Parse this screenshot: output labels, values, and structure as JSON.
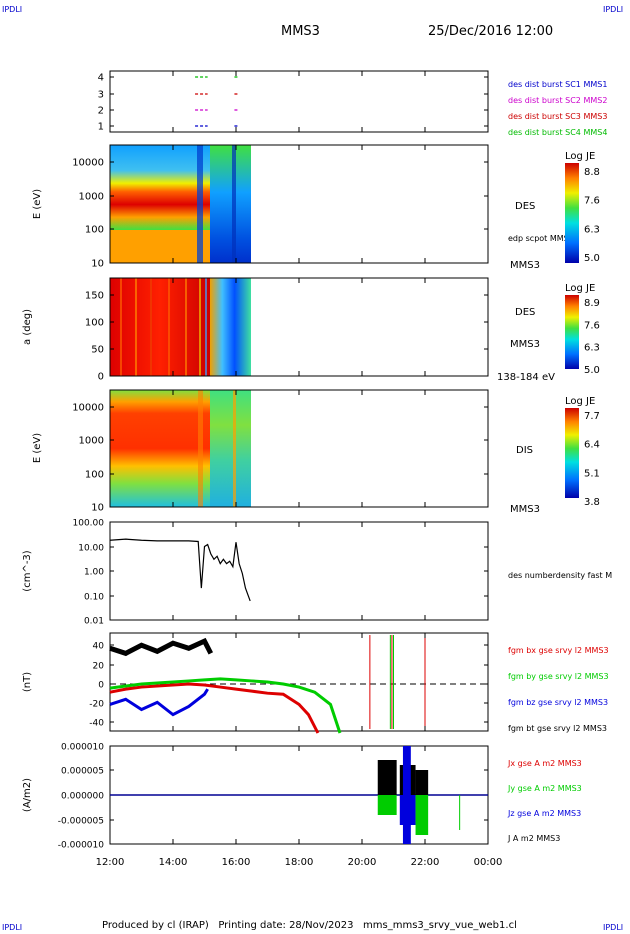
{
  "header": {
    "corner_left": "IPDLI",
    "corner_right": "IPDLI",
    "spacecraft": "MMS3",
    "datetime": "25/Dec/2016 12:00"
  },
  "footer": {
    "text": "Produced by cl (IRAP)   Printing date: 28/Nov/2023   mms_mms3_srvy_vue_web1.cl",
    "corner_left": "IPDLI",
    "corner_right": "IPDLI"
  },
  "chart_data": [
    {
      "type": "scatter",
      "panel": "availability",
      "x_range_hours": [
        12,
        24
      ],
      "y_ticks": [
        "4",
        "3",
        "2",
        "1"
      ],
      "legend": [
        {
          "label": "des dist burst SC1 MMS1",
          "color": "#0000cc"
        },
        {
          "label": "des dist burst SC2 MMS2",
          "color": "#cc00cc"
        },
        {
          "label": "des dist burst SC3 MMS3",
          "color": "#cc0000"
        },
        {
          "label": "des dist burst SC4 MMS4",
          "color": "#00bb00"
        }
      ],
      "intervals_hours": [
        [
          14.7,
          15.1
        ],
        [
          15.95,
          16.05
        ]
      ]
    },
    {
      "type": "heatmap",
      "panel": "des-energy",
      "ylabel": "E (eV)",
      "yscale": "log",
      "ylim": [
        10,
        30000
      ],
      "y_ticks": [
        "10000",
        "1000",
        "100",
        "10"
      ],
      "side_labels": [
        "DES",
        "edp scpot MMS3",
        "MMS3"
      ],
      "colorbar": {
        "title": "Log JE",
        "ticks": [
          "8.8",
          "7.6",
          "6.3",
          "5.0"
        ]
      },
      "data_extent_hours": [
        12,
        16.5
      ]
    },
    {
      "type": "heatmap",
      "panel": "des-pitch-angle",
      "ylabel": "a (deg)",
      "ylim": [
        0,
        180
      ],
      "y_ticks": [
        "150",
        "100",
        "50",
        "0"
      ],
      "side_labels": [
        "DES",
        "MMS3",
        "138-184 eV"
      ],
      "colorbar": {
        "title": "Log JE",
        "ticks": [
          "8.9",
          "7.6",
          "6.3",
          "5.0"
        ]
      },
      "data_extent_hours": [
        12,
        16.5
      ]
    },
    {
      "type": "heatmap",
      "panel": "dis-energy",
      "ylabel": "E (eV)",
      "yscale": "log",
      "ylim": [
        10,
        30000
      ],
      "y_ticks": [
        "10000",
        "1000",
        "100",
        "10"
      ],
      "side_labels": [
        "DIS",
        "MMS3"
      ],
      "colorbar": {
        "title": "Log JE",
        "ticks": [
          "7.7",
          "6.4",
          "5.1",
          "3.8"
        ]
      },
      "data_extent_hours": [
        12,
        16.5
      ]
    },
    {
      "type": "line",
      "panel": "density",
      "ylabel": "(cm^-3)",
      "yscale": "log",
      "ylim": [
        0.01,
        100
      ],
      "y_ticks": [
        "100.00",
        "10.00",
        "1.00",
        "0.10",
        "0.01"
      ],
      "series": [
        {
          "name": "des numberdensity fast M",
          "color": "#000000",
          "x": [
            12.0,
            12.5,
            13.0,
            13.5,
            14.0,
            14.5,
            14.8,
            14.9,
            15.0,
            15.1,
            15.2,
            15.3,
            15.4,
            15.5,
            15.6,
            15.7,
            15.8,
            15.9,
            16.0,
            16.1,
            16.2,
            16.3,
            16.45
          ],
          "y": [
            18,
            20,
            18,
            17,
            17,
            17,
            16,
            0.2,
            10,
            12,
            5,
            3,
            4,
            2,
            3,
            2,
            2.5,
            1.5,
            15,
            2,
            0.8,
            0.2,
            0.06
          ]
        }
      ]
    },
    {
      "type": "line",
      "panel": "magnetic-field",
      "ylabel": "(nT)",
      "ylim": [
        -48,
        48
      ],
      "y_ticks": [
        "40",
        "20",
        "0",
        "-20",
        "-40"
      ],
      "legend": [
        {
          "label": "fgm bx gse srvy l2 MMS3",
          "color": "#dd0000"
        },
        {
          "label": "fgm by gse srvy l2 MMS3",
          "color": "#00cc00"
        },
        {
          "label": "fgm bz gse srvy l2 MMS3",
          "color": "#0000dd"
        },
        {
          "label": "fgm bt gse srvy l2 MMS3",
          "color": "#000000"
        }
      ],
      "series": [
        {
          "name": "fgm bx gse srvy l2 MMS3",
          "color": "#dd0000",
          "x": [
            12.0,
            12.5,
            13.0,
            13.5,
            14.0,
            14.5,
            15.0,
            15.5,
            16.0,
            16.5,
            17.0,
            17.5,
            18.0,
            18.3,
            18.6
          ],
          "y": [
            -8,
            -5,
            -3,
            -2,
            -1,
            0,
            -1,
            -3,
            -5,
            -7,
            -9,
            -10,
            -20,
            -30,
            -48
          ]
        },
        {
          "name": "fgm by gse srvy l2 MMS3",
          "color": "#00cc00",
          "x": [
            12.0,
            12.5,
            13.0,
            13.5,
            14.0,
            14.5,
            15.0,
            15.5,
            16.0,
            16.5,
            17.0,
            17.5,
            18.0,
            18.5,
            19.0,
            19.3
          ],
          "y": [
            -4,
            -2,
            0,
            1,
            2,
            3,
            4,
            5,
            4,
            3,
            2,
            0,
            -3,
            -8,
            -20,
            -48
          ]
        },
        {
          "name": "fgm bz gse srvy l2 MMS3",
          "color": "#0000dd",
          "x": [
            12.0,
            12.5,
            13.0,
            13.5,
            14.0,
            14.5,
            15.0,
            15.1
          ],
          "y": [
            -20,
            -15,
            -25,
            -18,
            -30,
            -22,
            -10,
            -5
          ]
        },
        {
          "name": "fgm bt gse srvy l2 MMS3",
          "color": "#000000",
          "x": [
            12.0,
            12.5,
            13.0,
            13.5,
            14.0,
            14.5,
            15.0,
            15.2
          ],
          "y": [
            35,
            30,
            38,
            32,
            40,
            35,
            42,
            30
          ]
        }
      ],
      "zero_line": true
    },
    {
      "type": "line",
      "panel": "current-density",
      "ylabel": "(A/m2)",
      "ylim": [
        -1e-05,
        1e-05
      ],
      "y_ticks": [
        "0.000010",
        "0.000005",
        "0.000000",
        "-0.000005",
        "-0.000010"
      ],
      "legend": [
        {
          "label": "Jx gse A m2 MMS3",
          "color": "#dd0000"
        },
        {
          "label": "Jy gse A m2 MMS3",
          "color": "#00cc00"
        },
        {
          "label": "Jz gse A m2 MMS3",
          "color": "#0000dd"
        },
        {
          "label": "J A m2 MMS3",
          "color": "#000000"
        }
      ],
      "bursts_hours": [
        [
          20.5,
          21.1
        ],
        [
          21.2,
          21.7
        ],
        [
          21.7,
          22.1
        ]
      ]
    }
  ],
  "x_axis": {
    "ticks": [
      "12:00",
      "14:00",
      "16:00",
      "18:00",
      "20:00",
      "22:00",
      "00:00"
    ],
    "range_hours": [
      12,
      24
    ]
  }
}
